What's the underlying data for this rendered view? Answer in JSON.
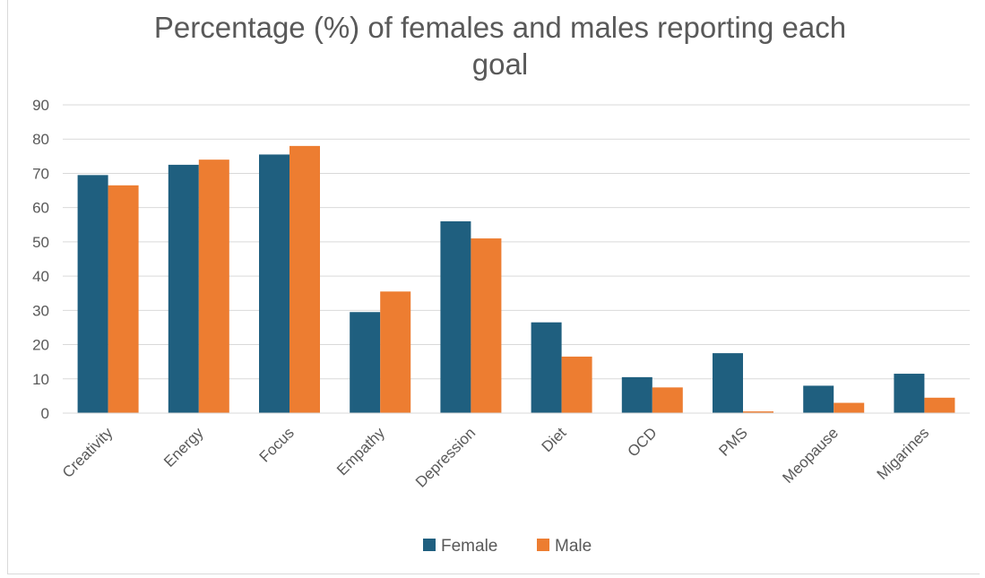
{
  "chart_data": {
    "type": "bar",
    "title_lines": [
      "Percentage (%) of females and males reporting each",
      "goal"
    ],
    "categories": [
      "Creativity",
      "Energy",
      "Focus",
      "Empathy",
      "Depression",
      "Diet",
      "OCD",
      "PMS",
      "Meopause",
      "Migarines"
    ],
    "series": [
      {
        "name": "Female",
        "color": "#1f5f7f",
        "values": [
          69.5,
          72.5,
          75.5,
          29.5,
          56,
          26.5,
          10.5,
          17.5,
          8,
          11.5
        ]
      },
      {
        "name": "Male",
        "color": "#ed7d31",
        "values": [
          66.5,
          74,
          78,
          35.5,
          51,
          16.5,
          7.5,
          0.5,
          3,
          4.5
        ]
      }
    ],
    "ylim": [
      0,
      90
    ],
    "yticks": [
      0,
      10,
      20,
      30,
      40,
      50,
      60,
      70,
      80,
      90
    ],
    "grid": true,
    "legend_position": "bottom"
  }
}
